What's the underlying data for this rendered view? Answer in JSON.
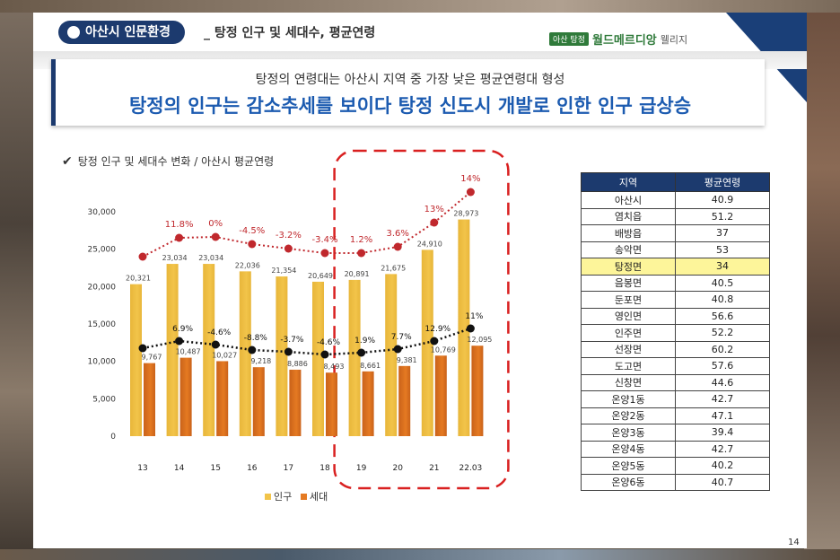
{
  "header": {
    "section": "아산시 인문환경",
    "title": "_ 탕정 인구 및 세대수, 평균연령",
    "logo_badge": "아산 탕정",
    "logo_main": "월드메르디앙",
    "logo_sub": "웰리지"
  },
  "banner": {
    "subtitle": "탕정의 연령대는 아산시 지역 중 가장 낮은 평균연령대 형성",
    "headline": "탕정의 인구는 감소추세를 보이다 탕정 신도시 개발로 인한 인구 급상승"
  },
  "chart_title": "탕정 인구 및 세대수 변화 / 아산시 평균연령",
  "chart_data": {
    "type": "bar",
    "categories": [
      "13",
      "14",
      "15",
      "16",
      "17",
      "18",
      "19",
      "20",
      "21",
      "22.03"
    ],
    "series": [
      {
        "name": "인구",
        "values": [
          20321,
          23034,
          23034,
          22036,
          21354,
          20649,
          20891,
          21675,
          24910,
          28973
        ],
        "color": "#f2c44a"
      },
      {
        "name": "세대",
        "values": [
          9767,
          10487,
          10027,
          9218,
          8886,
          8493,
          8661,
          9381,
          10769,
          12095
        ],
        "color": "#e57a22"
      }
    ],
    "pop_labels": [
      "20,321",
      "23,034",
      "23,034",
      "22,036",
      "21,354",
      "20,649",
      "20,891",
      "21,675",
      "24,910",
      "28,973"
    ],
    "hh_labels": [
      "9,767",
      "10,487",
      "10,027",
      "9,218",
      "8,886",
      "8,493",
      "8,661",
      "9,381",
      "10,769",
      "12,095"
    ],
    "pop_rates": [
      "",
      "11.8%",
      "0%",
      "-4.5%",
      "-3.2%",
      "-3.4%",
      "1.2%",
      "3.6%",
      "13%",
      "14%"
    ],
    "hh_rates": [
      "",
      "6.9%",
      "-4.6%",
      "-8.8%",
      "-3.7%",
      "-4.6%",
      "1.9%",
      "7.7%",
      "12.9%",
      "11%"
    ],
    "y_ticks": [
      "0",
      "5,000",
      "10,000",
      "15,000",
      "20,000",
      "25,000",
      "30,000"
    ],
    "ylim": [
      0,
      30000
    ],
    "legend": [
      "인구",
      "세대"
    ],
    "highlight_range": [
      "19",
      "22.03"
    ],
    "colors": {
      "pop_line": "#c0282d",
      "hh_line": "#111111",
      "highlight": "#d92020"
    }
  },
  "table": {
    "headers": [
      "지역",
      "평균연령"
    ],
    "rows": [
      [
        "아산시",
        "40.9"
      ],
      [
        "염치읍",
        "51.2"
      ],
      [
        "배방읍",
        "37"
      ],
      [
        "송악면",
        "53"
      ],
      [
        "탕정면",
        "34"
      ],
      [
        "음봉면",
        "40.5"
      ],
      [
        "둔포면",
        "40.8"
      ],
      [
        "영인면",
        "56.6"
      ],
      [
        "인주면",
        "52.2"
      ],
      [
        "선장면",
        "60.2"
      ],
      [
        "도고면",
        "57.6"
      ],
      [
        "신창면",
        "44.6"
      ],
      [
        "온양1동",
        "42.7"
      ],
      [
        "온양2동",
        "47.1"
      ],
      [
        "온양3동",
        "39.4"
      ],
      [
        "온양4동",
        "42.7"
      ],
      [
        "온양5동",
        "40.2"
      ],
      [
        "온양6동",
        "40.7"
      ]
    ],
    "highlight_row": 4
  },
  "page_number": "14"
}
